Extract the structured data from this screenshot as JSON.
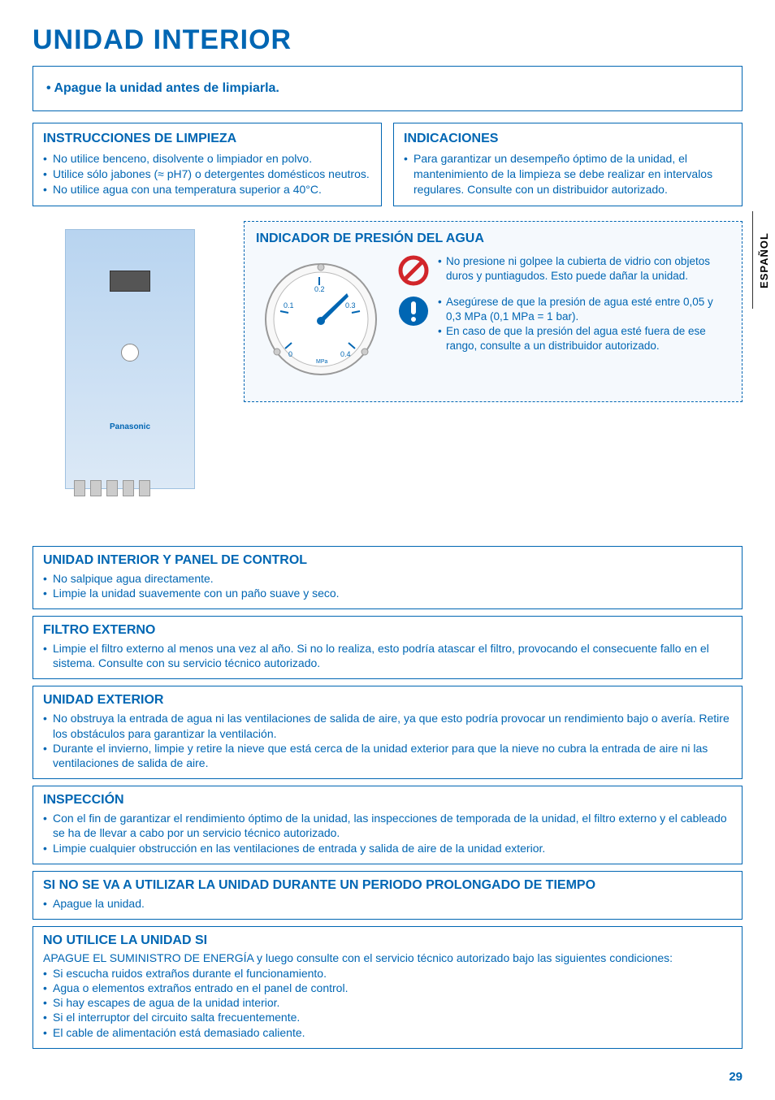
{
  "page_title": "UNIDAD INTERIOR",
  "side_tab": "ESPAÑOL",
  "page_number": "29",
  "warning_note": "Apague la unidad antes de limpiarla.",
  "left_box": {
    "title": "INSTRUCCIONES DE LIMPIEZA",
    "items": [
      "No utilice benceno, disolvente o limpiador en polvo.",
      "Utilice sólo jabones (≈ pH7) o detergentes domésticos neutros.",
      "No utilice agua con una temperatura superior a 40°C."
    ]
  },
  "right_box": {
    "title": "INDICACIONES",
    "items": [
      "Para garantizar un desempeño óptimo de la unidad, el mantenimiento de la limpieza se debe realizar en intervalos regulares. Consulte con un distribuidor autorizado."
    ]
  },
  "unit_brand": "Panasonic",
  "gauge": {
    "title": "INDICADOR DE PRESIÓN DEL AGUA",
    "ticks": [
      "0",
      "0.1",
      "0.2",
      "0.3",
      "0.4"
    ],
    "unit": "MPa",
    "prohibit": [
      "No presione ni golpee la cubierta de vidrio con objetos duros y puntiagudos. Esto puede dañar la unidad."
    ],
    "attention": [
      "Asegúrese de que la presión de agua esté entre 0,05 y 0,3 MPa (0,1 MPa = 1 bar).",
      "En caso de que la presión del agua esté fuera de ese rango, consulte a un distribuidor autorizado."
    ]
  },
  "sections": [
    {
      "title": "UNIDAD INTERIOR Y PANEL DE CONTROL",
      "items": [
        "No salpique agua directamente.",
        "Limpie la unidad suavemente con un paño suave y seco."
      ]
    },
    {
      "title": "FILTRO EXTERNO",
      "items": [
        "Limpie el filtro externo al menos una vez al año. Si no lo realiza, esto podría atascar el filtro, provocando el consecuente fallo en el sistema. Consulte con su servicio técnico autorizado."
      ]
    },
    {
      "title": "UNIDAD EXTERIOR",
      "items": [
        "No obstruya la entrada de agua ni las ventilaciones de salida de aire, ya que esto podría provocar un rendimiento bajo o avería. Retire los obstáculos para garantizar la ventilación.",
        "Durante el invierno, limpie y retire la nieve que está cerca de la unidad exterior para que la nieve no cubra la entrada de aire ni las ventilaciones de salida de aire."
      ]
    },
    {
      "title": "INSPECCIÓN",
      "items": [
        "Con el fin de garantizar el rendimiento óptimo de la unidad, las inspecciones de temporada de la unidad, el filtro externo y el cableado se ha de llevar a cabo por un servicio técnico autorizado.",
        "Limpie cualquier obstrucción en las ventilaciones de entrada y salida de aire de la unidad exterior."
      ]
    },
    {
      "title": "SI NO SE VA A UTILIZAR LA UNIDAD DURANTE UN PERIODO PROLONGADO DE TIEMPO",
      "items": [
        "Apague la unidad."
      ]
    },
    {
      "title": "NO UTILICE LA UNIDAD SI",
      "intro": "APAGUE EL SUMINISTRO DE ENERGÍA y luego consulte con el servicio técnico autorizado bajo las siguientes condiciones:",
      "items": [
        "Si escucha ruidos extraños durante el funcionamiento.",
        "Agua o elementos extraños entrado en el panel de control.",
        "Si hay escapes de agua de la unidad interior.",
        "Si el interruptor del circuito salta frecuentemente.",
        "El cable de alimentación está demasiado caliente."
      ]
    }
  ],
  "colors": {
    "accent": "#0066b3",
    "bg_light": "#f5f9fd"
  }
}
